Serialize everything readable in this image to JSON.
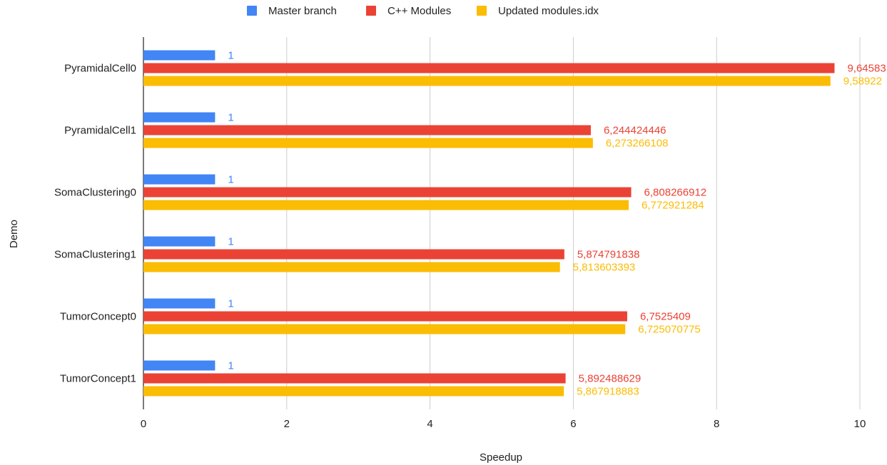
{
  "chart_data": {
    "type": "bar",
    "orientation": "horizontal",
    "title": "",
    "xlabel": "Speedup",
    "ylabel": "Demo",
    "xlim": [
      0,
      10
    ],
    "xticks": [
      "0",
      "2",
      "4",
      "6",
      "8",
      "10"
    ],
    "grid": true,
    "legend_position": "top",
    "categories": [
      "PyramidalCell0",
      "PyramidalCell1",
      "SomaClustering0",
      "SomaClustering1",
      "TumorConcept0",
      "TumorConcept1"
    ],
    "series": [
      {
        "name": "Master branch",
        "color": "#4285f4",
        "values": [
          1,
          1,
          1,
          1,
          1,
          1
        ],
        "labels": [
          "1",
          "1",
          "1",
          "1",
          "1",
          "1"
        ]
      },
      {
        "name": "C++ Modules",
        "color": "#ea4335",
        "values": [
          9.64583,
          6.244424446,
          6.808266912,
          5.874791838,
          6.7525409,
          5.892488629
        ],
        "labels": [
          "9,64583",
          "6,244424446",
          "6,808266912",
          "5,874791838",
          "6,7525409",
          "5,892488629"
        ]
      },
      {
        "name": "Updated modules.idx",
        "color": "#fbbc04",
        "values": [
          9.58922,
          6.273266108,
          6.772921284,
          5.813603393,
          6.725070775,
          5.867918883
        ],
        "labels": [
          "9,58922",
          "6,273266108",
          "6,772921284",
          "5,813603393",
          "6,725070775",
          "5,867918883"
        ]
      }
    ]
  }
}
